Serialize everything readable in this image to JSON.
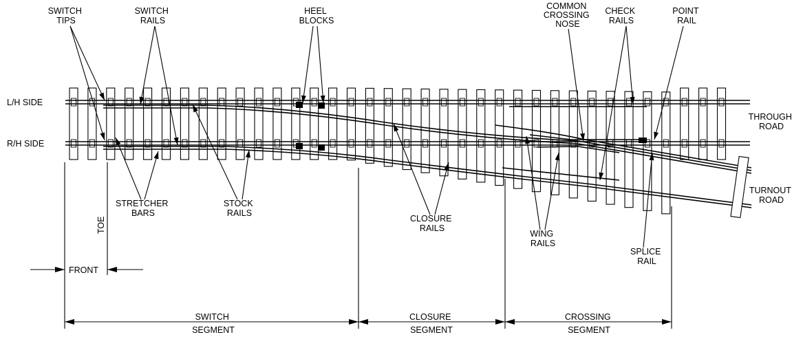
{
  "labels": {
    "switch_tips": [
      "SWITCH",
      "TIPS"
    ],
    "switch_rails": [
      "SWITCH",
      "RAILS"
    ],
    "heel_blocks": [
      "HEEL",
      "BLOCKS"
    ],
    "common_crossing_nose": [
      "COMMON",
      "CROSSING",
      "NOSE"
    ],
    "check_rails": [
      "CHECK",
      "RAILS"
    ],
    "point_rail": [
      "POINT",
      "RAIL"
    ],
    "lh_side": "L/H SIDE",
    "rh_side": "R/H SIDE",
    "through_road": [
      "THROUGH",
      "ROAD"
    ],
    "turnout_road": [
      "TURNOUT",
      "ROAD"
    ],
    "stretcher_bars": [
      "STRETCHER",
      "BARS"
    ],
    "stock_rails": [
      "STOCK",
      "RAILS"
    ],
    "closure_rails": [
      "CLOSURE",
      "RAILS"
    ],
    "wing_rails": [
      "WING",
      "RAILS"
    ],
    "splice_rail": [
      "SPLICE",
      "RAIL"
    ],
    "toe": "TOE",
    "front": "FRONT"
  },
  "segments": {
    "switch": [
      "SWITCH",
      "SEGMENT"
    ],
    "closure": [
      "CLOSURE",
      "SEGMENT"
    ],
    "crossing": [
      "CROSSING",
      "SEGMENT"
    ]
  },
  "colors": {
    "ink": "#000000",
    "background": "#ffffff"
  }
}
